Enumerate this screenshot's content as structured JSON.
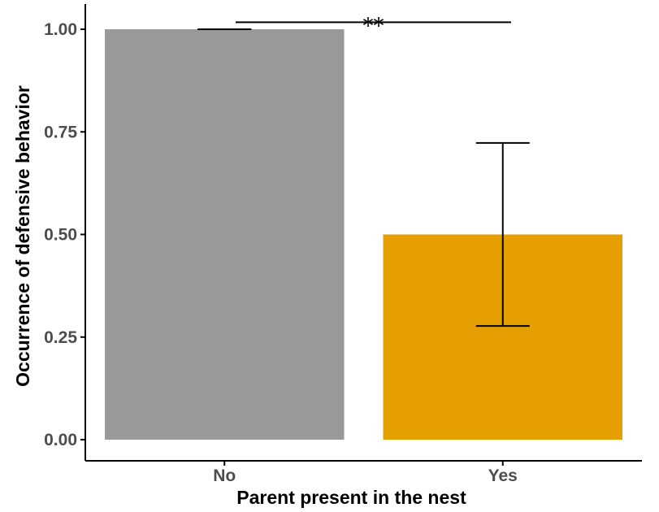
{
  "chart_data": {
    "type": "bar",
    "categories": [
      "No",
      "Yes"
    ],
    "values": [
      1.0,
      0.5
    ],
    "error_bars": [
      {
        "lower": 1.0,
        "upper": 1.0
      },
      {
        "lower": 0.277,
        "upper": 0.723
      }
    ],
    "colors": [
      "#999999",
      "#E69F00"
    ],
    "xlabel": "Parent present in the nest",
    "ylabel": "Occurrence of defensive behavior",
    "ylim": [
      0,
      1.05
    ],
    "yticks": [
      "0.00",
      "0.25",
      "0.50",
      "0.75",
      "1.00"
    ],
    "significance": {
      "label": "**",
      "between": [
        "No",
        "Yes"
      ],
      "y": 1.017
    },
    "grid": false,
    "legend": "none"
  }
}
